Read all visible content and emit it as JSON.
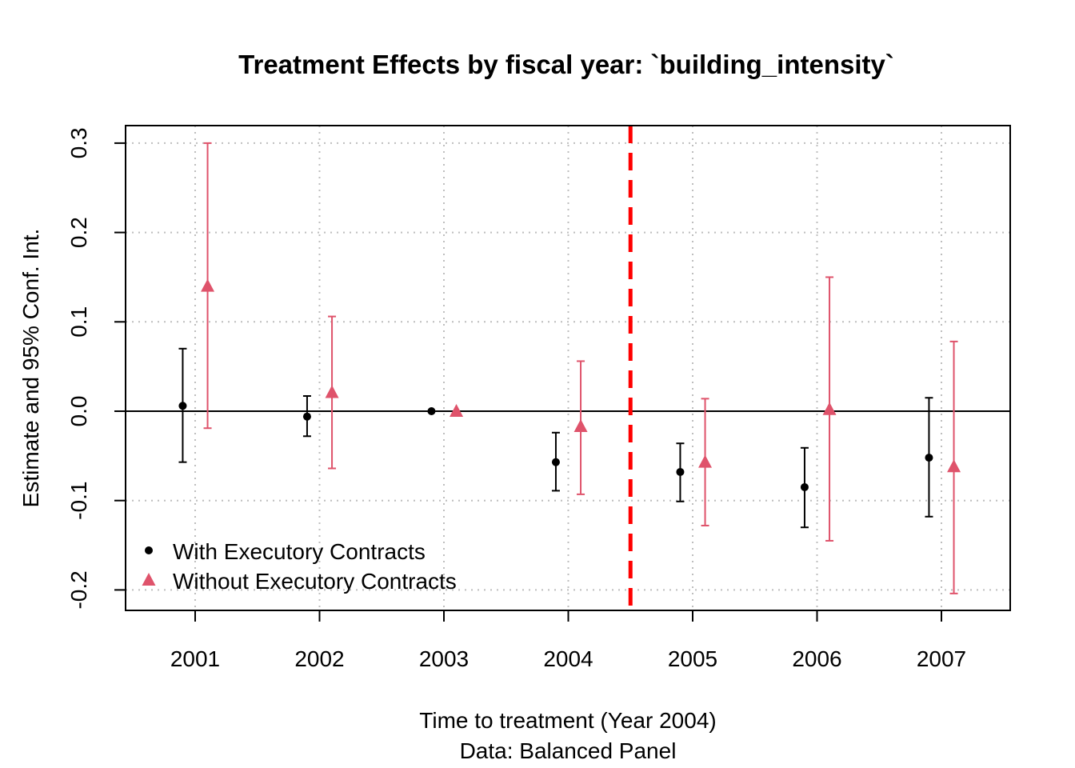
{
  "chart_data": {
    "type": "scatter",
    "title": "Treatment Effects by fiscal year: `building_intensity`",
    "xlabel": "Time to treatment (Year 2004)",
    "subtitle": "Data: Balanced Panel",
    "ylabel": "Estimate and 95% Conf. Int.",
    "categories": [
      "2001",
      "2002",
      "2003",
      "2004",
      "2005",
      "2006",
      "2007"
    ],
    "ylim": [
      -0.22,
      0.32
    ],
    "yticks": [
      -0.2,
      -0.1,
      0.0,
      0.1,
      0.2,
      0.3
    ],
    "ytick_labels": [
      "-0.2",
      "-0.1",
      "0.0",
      "0.1",
      "0.2",
      "0.3"
    ],
    "grid": true,
    "zero_line": 0,
    "treatment_line": {
      "between": [
        "2004",
        "2005"
      ],
      "color": "#ff0000",
      "style": "dashed"
    },
    "legend_position": "bottom-left",
    "series": [
      {
        "name": "With Executory Contracts",
        "marker": "circle",
        "color": "#000000",
        "offset": -0.1,
        "estimate": [
          0.006,
          -0.006,
          0.0,
          -0.057,
          -0.068,
          -0.085,
          -0.052
        ],
        "ci_low": [
          -0.057,
          -0.028,
          null,
          -0.089,
          -0.101,
          -0.13,
          -0.118
        ],
        "ci_high": [
          0.07,
          0.017,
          null,
          -0.024,
          -0.036,
          -0.041,
          0.015
        ]
      },
      {
        "name": "Without Executory Contracts",
        "marker": "triangle",
        "color": "#DF536B",
        "offset": 0.1,
        "estimate": [
          0.14,
          0.021,
          0.0,
          -0.017,
          -0.057,
          0.002,
          -0.062
        ],
        "ci_low": [
          -0.019,
          -0.064,
          null,
          -0.093,
          -0.128,
          -0.145,
          -0.204
        ],
        "ci_high": [
          0.3,
          0.106,
          null,
          0.056,
          0.014,
          0.15,
          0.078
        ]
      }
    ]
  }
}
